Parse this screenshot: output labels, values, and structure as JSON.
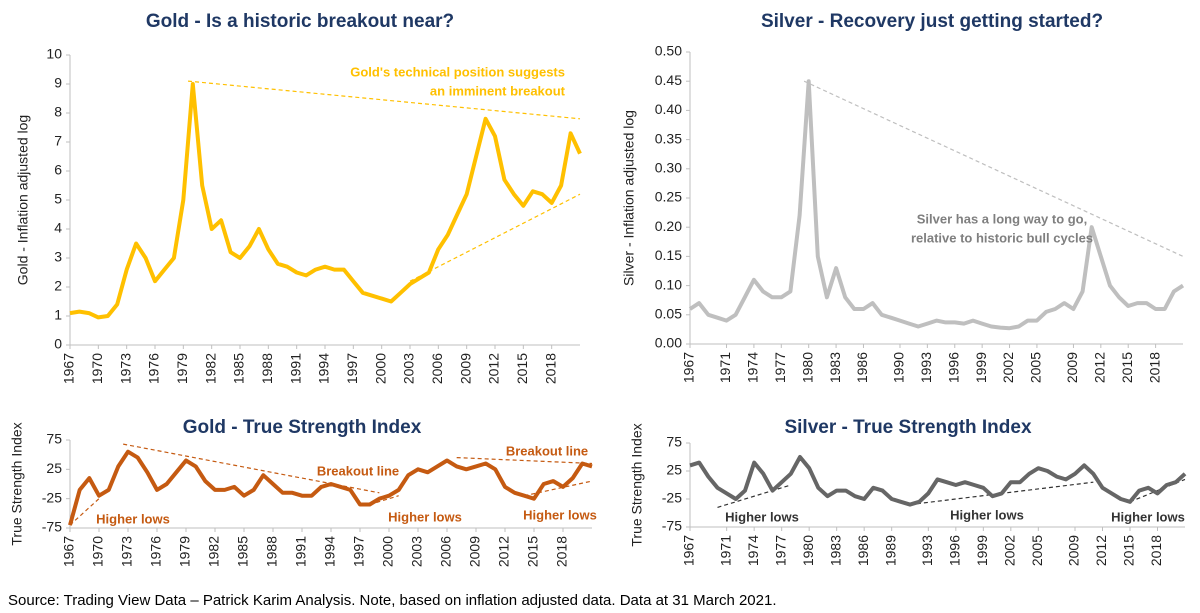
{
  "chart_data": [
    {
      "type": "line",
      "title": "Gold - Is a historic breakout near?",
      "y_label": "Gold - Inflation adjusted log",
      "color": "#ffc000",
      "x": [
        1967,
        1968,
        1969,
        1970,
        1971,
        1972,
        1973,
        1974,
        1975,
        1976,
        1977,
        1978,
        1979,
        1980,
        1981,
        1982,
        1983,
        1984,
        1985,
        1986,
        1987,
        1988,
        1989,
        1990,
        1991,
        1992,
        1993,
        1994,
        1995,
        1996,
        1997,
        1998,
        1999,
        2000,
        2001,
        2002,
        2003,
        2004,
        2005,
        2006,
        2007,
        2008,
        2009,
        2010,
        2011,
        2012,
        2013,
        2014,
        2015,
        2016,
        2017,
        2018,
        2019,
        2020,
        2021
      ],
      "values": [
        1.1,
        1.15,
        1.1,
        0.95,
        1.0,
        1.4,
        2.6,
        3.5,
        3.0,
        2.2,
        2.6,
        3.0,
        5.0,
        9.0,
        5.5,
        4.0,
        4.3,
        3.2,
        3.0,
        3.4,
        4.0,
        3.3,
        2.8,
        2.7,
        2.5,
        2.4,
        2.6,
        2.7,
        2.6,
        2.6,
        2.2,
        1.8,
        1.7,
        1.6,
        1.5,
        1.8,
        2.1,
        2.3,
        2.5,
        3.3,
        3.8,
        4.5,
        5.2,
        6.5,
        7.8,
        7.2,
        5.7,
        5.2,
        4.8,
        5.3,
        5.2,
        4.9,
        5.5,
        7.3,
        6.6
      ],
      "xlim": [
        1967,
        2021
      ],
      "xticks": [
        1967,
        1970,
        1973,
        1976,
        1979,
        1982,
        1985,
        1988,
        1991,
        1994,
        1997,
        2000,
        2003,
        2006,
        2009,
        2012,
        2015,
        2018
      ],
      "ylim": [
        0,
        10
      ],
      "yticks": [
        0,
        1,
        2,
        3,
        4,
        5,
        6,
        7,
        8,
        9,
        10
      ],
      "trend_lines": [
        {
          "x": [
            1979.5,
            2021
          ],
          "y": [
            9.1,
            7.8
          ]
        },
        {
          "x": [
            2003,
            2021
          ],
          "y": [
            2.2,
            5.2
          ]
        }
      ],
      "annotations": [
        {
          "text": [
            "Gold's technical position suggests",
            "an imminent breakout"
          ]
        }
      ]
    },
    {
      "type": "line",
      "title": "Silver - Recovery just getting started?",
      "y_label": "Silver - Inflation adjusted log",
      "color": "#bfbfbf",
      "x": [
        1967,
        1968,
        1969,
        1970,
        1971,
        1972,
        1973,
        1974,
        1975,
        1976,
        1977,
        1978,
        1979,
        1980,
        1981,
        1982,
        1983,
        1984,
        1985,
        1986,
        1987,
        1988,
        1989,
        1990,
        1991,
        1992,
        1993,
        1994,
        1995,
        1996,
        1997,
        1998,
        1999,
        2000,
        2001,
        2002,
        2003,
        2004,
        2005,
        2006,
        2007,
        2008,
        2009,
        2010,
        2011,
        2012,
        2013,
        2014,
        2015,
        2016,
        2017,
        2018,
        2019,
        2020,
        2021
      ],
      "values": [
        0.06,
        0.07,
        0.05,
        0.045,
        0.04,
        0.05,
        0.08,
        0.11,
        0.09,
        0.08,
        0.08,
        0.09,
        0.22,
        0.45,
        0.15,
        0.08,
        0.13,
        0.08,
        0.06,
        0.06,
        0.07,
        0.05,
        0.045,
        0.04,
        0.035,
        0.03,
        0.035,
        0.04,
        0.037,
        0.037,
        0.035,
        0.04,
        0.035,
        0.03,
        0.028,
        0.027,
        0.03,
        0.04,
        0.04,
        0.055,
        0.06,
        0.07,
        0.06,
        0.09,
        0.2,
        0.15,
        0.1,
        0.08,
        0.065,
        0.07,
        0.07,
        0.06,
        0.06,
        0.09,
        0.1
      ],
      "xlim": [
        1967,
        2021
      ],
      "xticks": [
        1967,
        1971,
        1974,
        1977,
        1980,
        1983,
        1986,
        1990,
        1993,
        1996,
        1999,
        2002,
        2005,
        2009,
        2012,
        2015,
        2018
      ],
      "ylim": [
        0,
        0.5
      ],
      "yticks": [
        {
          "value": 0,
          "label": "0.00"
        },
        0.05,
        {
          "value": 0.1,
          "label": "0.10"
        },
        0.15,
        {
          "value": 0.2,
          "label": "0.20"
        },
        0.25,
        {
          "value": 0.3,
          "label": "0.30"
        },
        0.35,
        {
          "value": 0.4,
          "label": "0.40"
        },
        0.45,
        {
          "value": 0.5,
          "label": "0.50"
        }
      ],
      "trend_lines": [
        {
          "x": [
            1979.5,
            2021
          ],
          "y": [
            0.45,
            0.15
          ]
        }
      ],
      "annotations": [
        {
          "text": [
            "Silver has a long way to go,",
            "relative to historic bull cycles"
          ]
        }
      ]
    },
    {
      "type": "line",
      "title": "Gold - True Strength Index",
      "y_label": "True Strength Index",
      "color": "#c55a11",
      "x": [
        1967,
        1968,
        1969,
        1970,
        1971,
        1972,
        1973,
        1974,
        1975,
        1976,
        1977,
        1978,
        1979,
        1980,
        1981,
        1982,
        1983,
        1984,
        1985,
        1986,
        1987,
        1988,
        1989,
        1990,
        1991,
        1992,
        1993,
        1994,
        1995,
        1996,
        1997,
        1998,
        1999,
        2000,
        2001,
        2002,
        2003,
        2004,
        2005,
        2006,
        2007,
        2008,
        2009,
        2010,
        2011,
        2012,
        2013,
        2014,
        2015,
        2016,
        2017,
        2018,
        2019,
        2020,
        2021
      ],
      "values": [
        -70,
        -10,
        10,
        -20,
        -10,
        30,
        55,
        45,
        20,
        -10,
        0,
        20,
        40,
        30,
        5,
        -10,
        -10,
        -5,
        -20,
        -10,
        15,
        0,
        -15,
        -15,
        -20,
        -20,
        -5,
        0,
        -5,
        -10,
        -35,
        -35,
        -25,
        -20,
        -10,
        15,
        25,
        20,
        30,
        40,
        30,
        25,
        30,
        35,
        25,
        -5,
        -15,
        -20,
        -25,
        0,
        5,
        -5,
        10,
        35,
        30
      ],
      "xlim": [
        1967,
        2021
      ],
      "xticks": [
        1967,
        1970,
        1973,
        1976,
        1979,
        1982,
        1985,
        1988,
        1991,
        1994,
        1997,
        2000,
        2003,
        2006,
        2009,
        2012,
        2015,
        2018
      ],
      "ylim": [
        -75,
        75
      ],
      "yticks": [
        -75,
        -25,
        25,
        75
      ],
      "trend_lines": [
        {
          "x": [
            1972.5,
            1999
          ],
          "y": [
            68,
            -15
          ]
        },
        {
          "x": [
            2007,
            2021
          ],
          "y": [
            45,
            35
          ]
        },
        {
          "x": [
            1967,
            1970
          ],
          "y": [
            -70,
            -25
          ]
        },
        {
          "x": [
            1998,
            2001
          ],
          "y": [
            -35,
            -20
          ]
        },
        {
          "x": [
            2014,
            2021
          ],
          "y": [
            -20,
            5
          ]
        }
      ],
      "annotations": [
        {
          "text": [
            "Breakout line"
          ]
        },
        {
          "text": [
            "Breakout line"
          ]
        },
        {
          "text": [
            "Higher lows"
          ]
        },
        {
          "text": [
            "Higher lows"
          ]
        },
        {
          "text": [
            "Higher lows"
          ]
        }
      ]
    },
    {
      "type": "line",
      "title": "Silver - True Strength Index",
      "y_label": "True Strength Index",
      "color": "#666666",
      "x": [
        1967,
        1968,
        1969,
        1970,
        1971,
        1972,
        1973,
        1974,
        1975,
        1976,
        1977,
        1978,
        1979,
        1980,
        1981,
        1982,
        1983,
        1984,
        1985,
        1986,
        1987,
        1988,
        1989,
        1990,
        1991,
        1992,
        1993,
        1994,
        1995,
        1996,
        1997,
        1998,
        1999,
        2000,
        2001,
        2002,
        2003,
        2004,
        2005,
        2006,
        2007,
        2008,
        2009,
        2010,
        2011,
        2012,
        2013,
        2014,
        2015,
        2016,
        2017,
        2018,
        2019,
        2020,
        2021
      ],
      "values": [
        35,
        40,
        15,
        -5,
        -15,
        -25,
        -10,
        40,
        20,
        -10,
        5,
        20,
        50,
        30,
        -5,
        -20,
        -10,
        -10,
        -20,
        -25,
        -5,
        -10,
        -25,
        -30,
        -35,
        -30,
        -15,
        10,
        5,
        0,
        5,
        0,
        -5,
        -20,
        -15,
        5,
        5,
        20,
        30,
        25,
        15,
        10,
        20,
        35,
        20,
        -5,
        -15,
        -25,
        -30,
        -10,
        -5,
        -15,
        0,
        5,
        20
      ],
      "xlim": [
        1967,
        2021
      ],
      "xticks": [
        1967,
        1971,
        1974,
        1977,
        1980,
        1983,
        1986,
        1989,
        1993,
        1996,
        1999,
        2002,
        2005,
        2009,
        2012,
        2015,
        2018
      ],
      "ylim": [
        -75,
        75
      ],
      "yticks": [
        -75,
        -25,
        25,
        75
      ],
      "trend_lines": [
        {
          "x": [
            1970,
            1978
          ],
          "y": [
            -40,
            0
          ]
        },
        {
          "x": [
            1991,
            2011
          ],
          "y": [
            -35,
            5
          ]
        },
        {
          "x": [
            2015,
            2021
          ],
          "y": [
            -30,
            10
          ]
        }
      ],
      "annotations": [
        {
          "text": [
            "Higher lows"
          ]
        },
        {
          "text": [
            "Higher lows"
          ]
        },
        {
          "text": [
            "Higher lows"
          ]
        }
      ]
    }
  ],
  "source": "Source: Trading View Data – Patrick Karim Analysis. Note, based on inflation adjusted data. Data at 31 March 2021."
}
